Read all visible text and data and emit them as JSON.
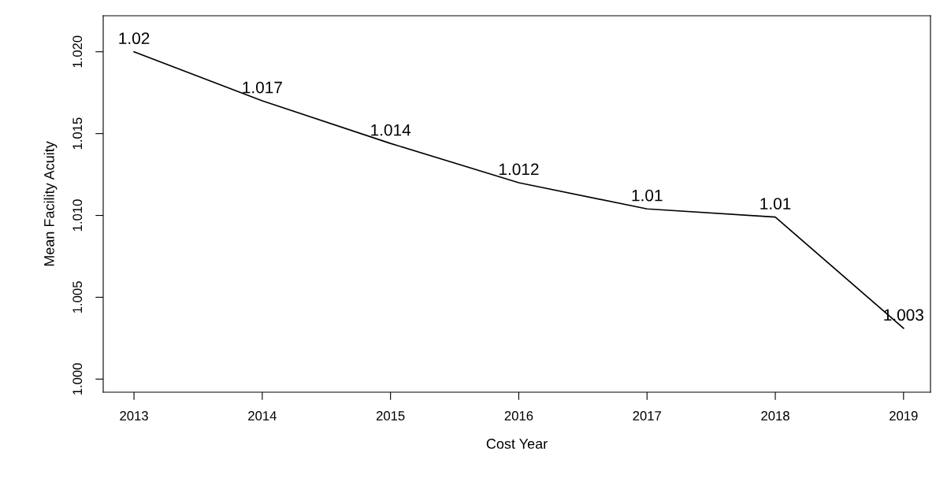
{
  "chart_data": {
    "type": "line",
    "xlabel": "Cost Year",
    "ylabel": "Mean Facility Acuity",
    "x": [
      2013,
      2014,
      2015,
      2016,
      2017,
      2018,
      2019
    ],
    "series": [
      {
        "color": "#000000",
        "values": [
          1.02,
          1.017,
          1.0144,
          1.012,
          1.0104,
          1.0099,
          1.0031
        ],
        "value_labels": [
          "1.02",
          "1.017",
          "1.014",
          "1.012",
          "1.01",
          "1.01",
          "1.003"
        ]
      }
    ],
    "xlim": [
      2012.76,
      2019.21
    ],
    "xticks": [
      2013,
      2014,
      2015,
      2016,
      2017,
      2018,
      2019
    ],
    "ylim": [
      0.9992,
      1.0222
    ],
    "yticks": [
      {
        "value": 1.0,
        "label": "1.000"
      },
      {
        "value": 1.005,
        "label": "1.005"
      },
      {
        "value": 1.01,
        "label": "1.010"
      },
      {
        "value": 1.015,
        "label": "1.015"
      },
      {
        "value": 1.02,
        "label": "1.020"
      }
    ],
    "grid": false,
    "marker": "none",
    "line_style": "solid"
  }
}
